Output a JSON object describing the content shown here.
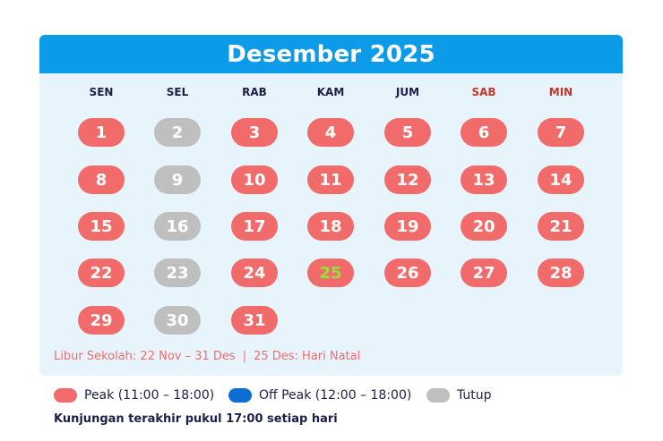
{
  "calendar": {
    "title": "Desember 2025",
    "weekdays": [
      {
        "label": "SEN",
        "weekend": false
      },
      {
        "label": "SEL",
        "weekend": false
      },
      {
        "label": "RAB",
        "weekend": false
      },
      {
        "label": "KAM",
        "weekend": false
      },
      {
        "label": "JUM",
        "weekend": false
      },
      {
        "label": "SAB",
        "weekend": true
      },
      {
        "label": "MIN",
        "weekend": true
      }
    ],
    "days": [
      {
        "day": "1",
        "status": "peak"
      },
      {
        "day": "2",
        "status": "closed"
      },
      {
        "day": "3",
        "status": "peak"
      },
      {
        "day": "4",
        "status": "peak"
      },
      {
        "day": "5",
        "status": "peak"
      },
      {
        "day": "6",
        "status": "peak"
      },
      {
        "day": "7",
        "status": "peak"
      },
      {
        "day": "8",
        "status": "peak"
      },
      {
        "day": "9",
        "status": "closed"
      },
      {
        "day": "10",
        "status": "peak"
      },
      {
        "day": "11",
        "status": "peak"
      },
      {
        "day": "12",
        "status": "peak"
      },
      {
        "day": "13",
        "status": "peak"
      },
      {
        "day": "14",
        "status": "peak"
      },
      {
        "day": "15",
        "status": "peak"
      },
      {
        "day": "16",
        "status": "closed"
      },
      {
        "day": "17",
        "status": "peak"
      },
      {
        "day": "18",
        "status": "peak"
      },
      {
        "day": "19",
        "status": "peak"
      },
      {
        "day": "20",
        "status": "peak"
      },
      {
        "day": "21",
        "status": "peak"
      },
      {
        "day": "22",
        "status": "peak"
      },
      {
        "day": "23",
        "status": "closed"
      },
      {
        "day": "24",
        "status": "peak"
      },
      {
        "day": "25",
        "status": "peak",
        "holiday": true
      },
      {
        "day": "26",
        "status": "peak"
      },
      {
        "day": "27",
        "status": "peak"
      },
      {
        "day": "28",
        "status": "peak"
      },
      {
        "day": "29",
        "status": "peak"
      },
      {
        "day": "30",
        "status": "closed"
      },
      {
        "day": "31",
        "status": "peak"
      }
    ],
    "first_weekday_index": 0,
    "footnote": {
      "school_holiday": "Libur Sekolah: 22 Nov – 31 Des",
      "separator": "|",
      "christmas": "25 Des: Hari Natal"
    }
  },
  "legend": {
    "peak": {
      "label": "Peak (11:00 – 18:00)",
      "color": "#f26b6b"
    },
    "off_peak": {
      "label": "Off Peak (12:00 – 18:00)",
      "color": "#0a6fd1"
    },
    "closed": {
      "label": "Tutup",
      "color": "#bfbfbf"
    }
  },
  "note": {
    "last_visit": "Kunjungan terakhir pukul 17:00 setiap hari"
  },
  "colors": {
    "header": "#0b9be8",
    "card_bg": "#e8f4fc",
    "holiday_text": "#8fe33a",
    "weekend_label": "#c0392b"
  }
}
